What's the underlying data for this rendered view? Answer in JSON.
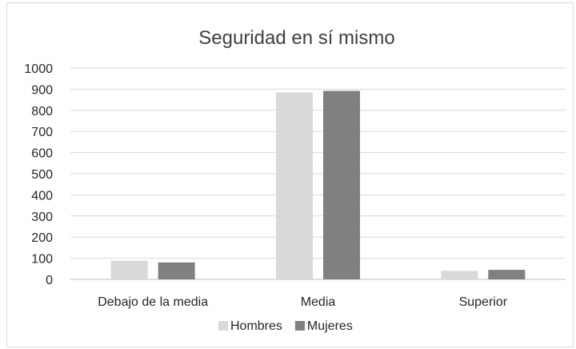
{
  "chart_data": {
    "type": "bar",
    "title": "Seguridad en sí mismo",
    "xlabel": "",
    "ylabel": "",
    "categories": [
      "Debajo de la media",
      "Media",
      "Superior"
    ],
    "series": [
      {
        "name": "Hombres",
        "values": [
          88,
          885,
          40
        ],
        "color": "#d9d9d9"
      },
      {
        "name": "Mujeres",
        "values": [
          80,
          892,
          45
        ],
        "color": "#808080"
      }
    ],
    "ylim": [
      0,
      1000
    ],
    "yticks": [
      0,
      100,
      200,
      300,
      400,
      500,
      600,
      700,
      800,
      900,
      1000
    ],
    "grid": true,
    "legend_position": "bottom",
    "colors": {
      "gridline": "#d9d9d9",
      "axis": "#bfbfbf",
      "text": "#262626",
      "title": "#404040"
    }
  }
}
